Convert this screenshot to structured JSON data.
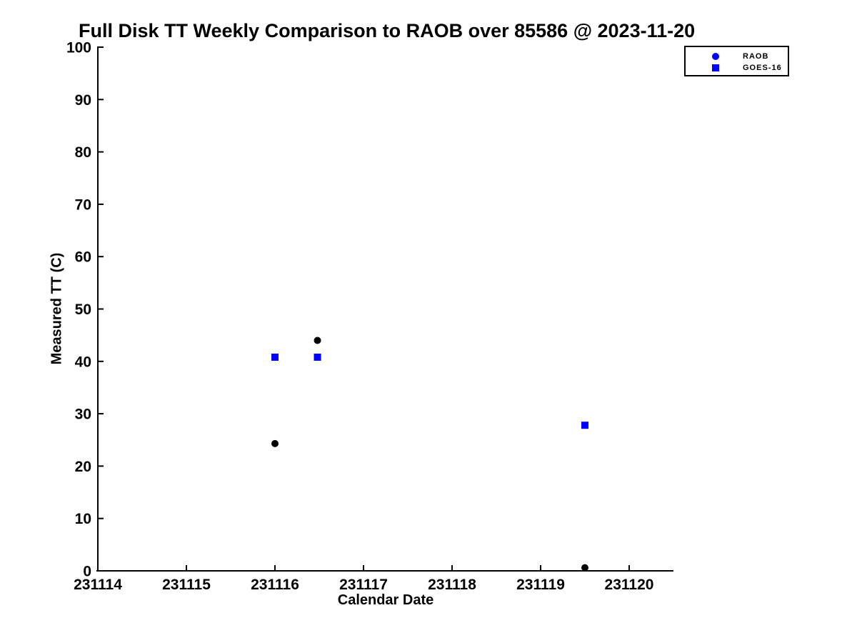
{
  "chart_data": {
    "type": "scatter",
    "title": "Full Disk TT Weekly Comparison to RAOB over 85586 @ 2023-11-20",
    "xlabel": "Calendar Date",
    "ylabel": "Measured TT (C)",
    "xlim": [
      231114,
      231120.5
    ],
    "ylim": [
      0,
      100
    ],
    "x_ticks": [
      231114,
      231115,
      231116,
      231117,
      231118,
      231119,
      231120
    ],
    "y_ticks": [
      0,
      10,
      20,
      30,
      40,
      50,
      60,
      70,
      80,
      90,
      100
    ],
    "grid": false,
    "legend_position": "top-right",
    "axis_color": "#000000",
    "series": [
      {
        "name": "RAOB",
        "marker": "circle",
        "color": "#000000",
        "legend_marker_color": "#0000ff",
        "points": [
          {
            "x": 231116.0,
            "y": 24.3
          },
          {
            "x": 231116.48,
            "y": 44.0
          },
          {
            "x": 231119.5,
            "y": 0.6
          }
        ]
      },
      {
        "name": "GOES-16",
        "marker": "square",
        "color": "#0000ff",
        "legend_marker_color": "#0000ff",
        "points": [
          {
            "x": 231116.0,
            "y": 40.8
          },
          {
            "x": 231116.48,
            "y": 40.8
          },
          {
            "x": 231119.5,
            "y": 27.8
          }
        ]
      }
    ]
  }
}
